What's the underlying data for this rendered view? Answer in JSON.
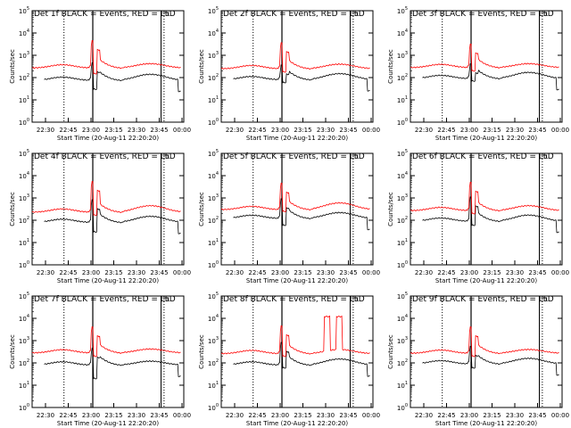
{
  "chart_data": [
    {
      "type": "line",
      "title": "Det 1f  BLACK = Events, RED = LLD",
      "ylabel": "Counts/sec",
      "xlabel": "Start Time (20-Aug-11 22:20:20)",
      "xticks": [
        "22:30",
        "22:45",
        "23:00",
        "23:15",
        "23:30",
        "23:45",
        "00:00"
      ],
      "yticks": [
        "10^0",
        "10^1",
        "10^2",
        "10^3",
        "10^4",
        "10^5"
      ],
      "yscale": "log",
      "ylim": [
        1,
        100000
      ],
      "series": [
        {
          "color": "#000000",
          "y_base": 75,
          "spike": 500,
          "dip": 30,
          "hump": 140
        },
        {
          "color": "#ff0000",
          "y_base": 270,
          "spike": 5000,
          "dip": 150,
          "hump": 420
        }
      ]
    },
    {
      "type": "line",
      "title": "Det 2f  BLACK = Events, RED = LLD",
      "ylabel": "Counts/sec",
      "xlabel": "Start Time (20-Aug-11 22:20:20)",
      "xticks": [
        "22:30",
        "22:45",
        "23:00",
        "23:15",
        "23:30",
        "23:45",
        "00:00"
      ],
      "yticks": [
        "10^0",
        "10^1",
        "10^2",
        "10^3",
        "10^4",
        "10^5"
      ],
      "yscale": "log",
      "ylim": [
        1,
        100000
      ],
      "series": [
        {
          "color": "#000000",
          "y_base": 80,
          "spike": 400,
          "dip": 60,
          "hump": 150
        },
        {
          "color": "#ff0000",
          "y_base": 250,
          "spike": 4000,
          "dip": 180,
          "hump": 400
        }
      ]
    },
    {
      "type": "line",
      "title": "Det 3f  BLACK = Events, RED = LLD",
      "ylabel": "Counts/sec",
      "xlabel": "Start Time (20-Aug-11 22:20:20)",
      "xticks": [
        "22:30",
        "22:45",
        "23:00",
        "23:15",
        "23:30",
        "23:45",
        "00:00"
      ],
      "yticks": [
        "10^0",
        "10^1",
        "10^2",
        "10^3",
        "10^4",
        "10^5"
      ],
      "yscale": "log",
      "ylim": [
        1,
        100000
      ],
      "series": [
        {
          "color": "#000000",
          "y_base": 90,
          "spike": 450,
          "dip": 70,
          "hump": 170
        },
        {
          "color": "#ff0000",
          "y_base": 280,
          "spike": 3500,
          "dip": 200,
          "hump": 420
        }
      ]
    },
    {
      "type": "line",
      "title": "Det 4f  BLACK = Events, RED = LLD",
      "ylabel": "Counts/sec",
      "xlabel": "Start Time (20-Aug-11 22:20:20)",
      "xticks": [
        "22:30",
        "22:45",
        "23:00",
        "23:15",
        "23:30",
        "23:45",
        "00:00"
      ],
      "yticks": [
        "10^0",
        "10^1",
        "10^2",
        "10^3",
        "10^4",
        "10^5"
      ],
      "yscale": "log",
      "ylim": [
        1,
        100000
      ],
      "series": [
        {
          "color": "#000000",
          "y_base": 80,
          "spike": 900,
          "dip": 30,
          "hump": 150
        },
        {
          "color": "#ff0000",
          "y_base": 230,
          "spike": 6000,
          "dip": 170,
          "hump": 450
        }
      ]
    },
    {
      "type": "line",
      "title": "Det 5f  BLACK = Events, RED = LLD",
      "ylabel": "Counts/sec",
      "xlabel": "Start Time (20-Aug-11 22:20:20)",
      "xticks": [
        "22:30",
        "22:45",
        "23:00",
        "23:15",
        "23:30",
        "23:45",
        "00:00"
      ],
      "yticks": [
        "10^0",
        "10^1",
        "10^2",
        "10^3",
        "10^4",
        "10^5"
      ],
      "yscale": "log",
      "ylim": [
        1,
        100000
      ],
      "series": [
        {
          "color": "#000000",
          "y_base": 120,
          "spike": 1000,
          "dip": 60,
          "hump": 220
        },
        {
          "color": "#ff0000",
          "y_base": 300,
          "spike": 5000,
          "dip": 250,
          "hump": 600
        }
      ]
    },
    {
      "type": "line",
      "title": "Det 6f  BLACK = Events, RED = LLD",
      "ylabel": "Counts/sec",
      "xlabel": "Start Time (20-Aug-11 22:20:20)",
      "xticks": [
        "22:30",
        "22:45",
        "23:00",
        "23:15",
        "23:30",
        "23:45",
        "00:00"
      ],
      "yticks": [
        "10^0",
        "10^1",
        "10^2",
        "10^3",
        "10^4",
        "10^5"
      ],
      "yscale": "log",
      "ylim": [
        1,
        100000
      ],
      "series": [
        {
          "color": "#000000",
          "y_base": 90,
          "spike": 1200,
          "dip": 60,
          "hump": 170
        },
        {
          "color": "#ff0000",
          "y_base": 270,
          "spike": 5500,
          "dip": 200,
          "hump": 450
        }
      ]
    },
    {
      "type": "line",
      "title": "Det 7f  BLACK = Events, RED = LLD",
      "ylabel": "Counts/sec",
      "xlabel": "Start Time (20-Aug-11 22:20:20)",
      "xticks": [
        "22:30",
        "22:45",
        "23:00",
        "23:15",
        "23:30",
        "23:45",
        "00:00"
      ],
      "yticks": [
        "10^0",
        "10^1",
        "10^2",
        "10^3",
        "10^4",
        "10^5"
      ],
      "yscale": "log",
      "ylim": [
        1,
        100000
      ],
      "series": [
        {
          "color": "#000000",
          "y_base": 80,
          "spike": 500,
          "dip": 20,
          "hump": 120
        },
        {
          "color": "#ff0000",
          "y_base": 280,
          "spike": 4500,
          "dip": 200,
          "hump": 420
        }
      ]
    },
    {
      "type": "line",
      "title": "Det 8f  BLACK = Events, RED = LLD",
      "ylabel": "Counts/sec",
      "xlabel": "Start Time (20-Aug-11 22:20:20)",
      "xticks": [
        "22:30",
        "22:45",
        "23:00",
        "23:15",
        "23:30",
        "23:45",
        "00:00"
      ],
      "yticks": [
        "10^0",
        "10^1",
        "10^2",
        "10^3",
        "10^4",
        "10^5"
      ],
      "yscale": "log",
      "ylim": [
        1,
        100000
      ],
      "series": [
        {
          "color": "#000000",
          "y_base": 80,
          "spike": 900,
          "dip": 60,
          "hump": 150
        },
        {
          "color": "#ff0000",
          "y_base": 260,
          "spike": 5000,
          "dip": 200,
          "hump": 400,
          "plateaus": [
            12000,
            12000
          ]
        }
      ]
    },
    {
      "type": "line",
      "title": "Det 9f  BLACK = Events, RED = LLD",
      "ylabel": "Counts/sec",
      "xlabel": "Start Time (20-Aug-11 22:20:20)",
      "xticks": [
        "22:30",
        "22:45",
        "23:00",
        "23:15",
        "23:30",
        "23:45",
        "00:00"
      ],
      "yticks": [
        "10^0",
        "10^1",
        "10^2",
        "10^3",
        "10^4",
        "10^5"
      ],
      "yscale": "log",
      "ylim": [
        1,
        100000
      ],
      "series": [
        {
          "color": "#000000",
          "y_base": 90,
          "spike": 600,
          "dip": 60,
          "hump": 160
        },
        {
          "color": "#ff0000",
          "y_base": 270,
          "spike": 4500,
          "dip": 200,
          "hump": 400
        }
      ]
    }
  ]
}
